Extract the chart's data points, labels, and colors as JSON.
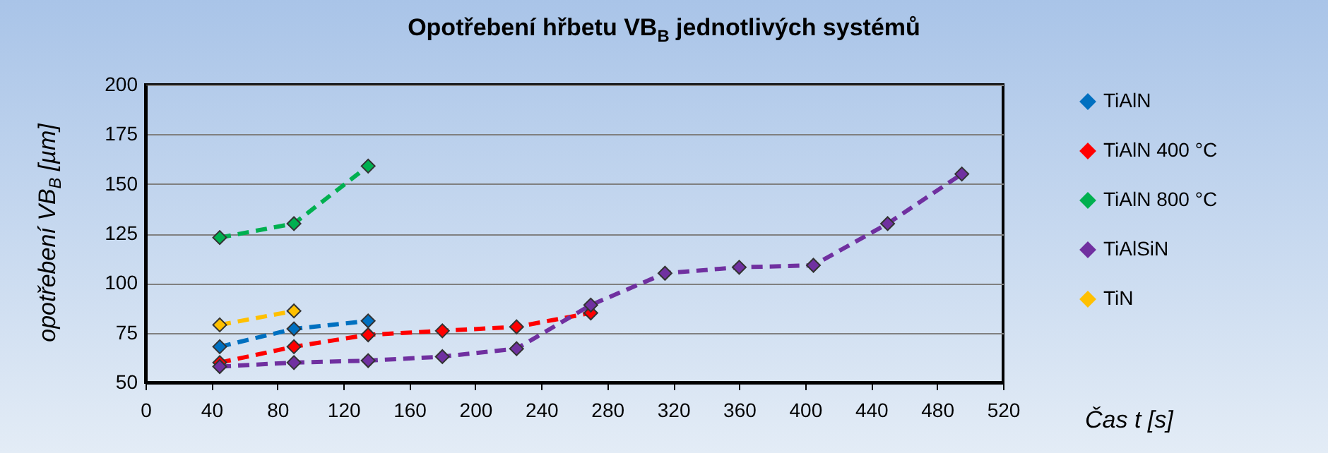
{
  "chart_data": {
    "type": "line",
    "title": "Opotřebení hřbetu VB$_{B}$ jednotlivých systémů",
    "xlabel": "Čas t [s]",
    "ylabel": "opotřebení VB$_{B}$ [µm]",
    "x": [
      45,
      90,
      135,
      180,
      225,
      270,
      315,
      360,
      405,
      450,
      495
    ],
    "series": [
      {
        "name": "TiAlN",
        "color": "#0070c0",
        "values": [
          68,
          77,
          81,
          null,
          null,
          null,
          null,
          null,
          null,
          null,
          null
        ]
      },
      {
        "name": "TiAlN 400 °C",
        "color": "#ff0000",
        "values": [
          60,
          68,
          74,
          76,
          78,
          85,
          null,
          null,
          null,
          null,
          null
        ]
      },
      {
        "name": "TiAlN 800 °C",
        "color": "#00b050",
        "values": [
          123,
          130,
          159,
          null,
          null,
          null,
          null,
          null,
          null,
          null,
          null
        ]
      },
      {
        "name": "TiAlSiN",
        "color": "#7030a0",
        "values": [
          58,
          60,
          61,
          63,
          67,
          89,
          105,
          108,
          109,
          130,
          155
        ]
      },
      {
        "name": "TiN",
        "color": "#ffc000",
        "values": [
          79,
          86,
          null,
          null,
          null,
          null,
          null,
          null,
          null,
          null,
          null
        ]
      }
    ],
    "xlim": [
      0,
      520
    ],
    "xticks": [
      0,
      40,
      80,
      120,
      160,
      200,
      240,
      280,
      320,
      360,
      400,
      440,
      480,
      520
    ],
    "ylim": [
      50,
      200
    ],
    "yticks": [
      50,
      75,
      100,
      125,
      150,
      175,
      200
    ],
    "grid": "y",
    "legend": "right",
    "marker": "diamond",
    "line_style": "dashed"
  }
}
